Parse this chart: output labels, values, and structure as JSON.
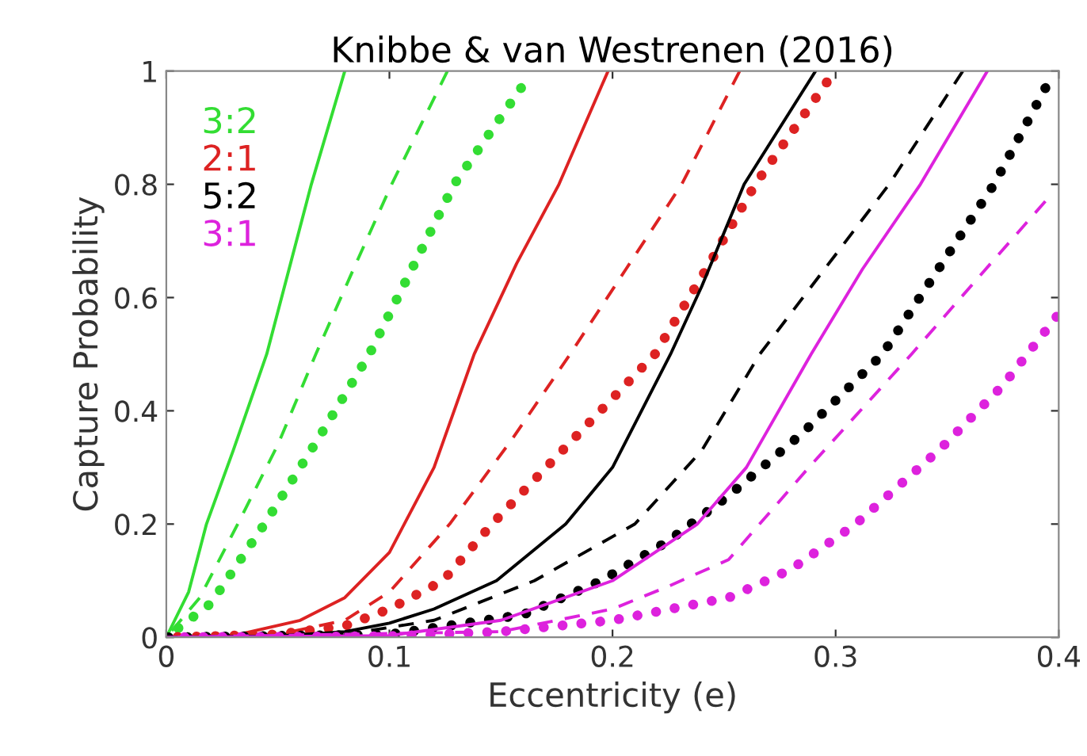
{
  "chart_data": {
    "type": "line",
    "title": "Knibbe & van Westrenen (2016)",
    "xlabel": "Eccentricity (e)",
    "ylabel": "Capture Probability",
    "xlim": [
      0,
      0.4
    ],
    "ylim": [
      0,
      1
    ],
    "xticks": [
      0,
      0.1,
      0.2,
      0.3,
      0.4
    ],
    "yticks": [
      0,
      0.2,
      0.4,
      0.6,
      0.8,
      1
    ],
    "grid": false,
    "legend": "top left",
    "series": [
      {
        "name": "3:2",
        "color": "#33dd33",
        "line_style": "solid",
        "x": [
          0,
          0.01,
          0.018,
          0.03,
          0.045,
          0.065,
          0.08
        ],
        "values": [
          0,
          0.08,
          0.2,
          0.33,
          0.5,
          0.8,
          1.0
        ]
      },
      {
        "color": "#33dd33",
        "line_style": "dashed",
        "x": [
          0,
          0.015,
          0.032,
          0.05,
          0.067,
          0.085,
          0.101,
          0.126
        ],
        "values": [
          0,
          0.07,
          0.2,
          0.34,
          0.5,
          0.66,
          0.8,
          1.0
        ]
      },
      {
        "color": "#33dd33",
        "line_style": "dotted",
        "x": [
          0,
          0.02,
          0.044,
          0.068,
          0.091,
          0.11,
          0.129,
          0.159
        ],
        "values": [
          0,
          0.06,
          0.2,
          0.35,
          0.5,
          0.65,
          0.8,
          0.97
        ]
      },
      {
        "name": "2:1",
        "color": "#dd2222",
        "line_style": "solid",
        "x": [
          0,
          0.03,
          0.06,
          0.08,
          0.1,
          0.12,
          0.138,
          0.157,
          0.176,
          0.198
        ],
        "values": [
          0,
          0.003,
          0.03,
          0.07,
          0.15,
          0.3,
          0.5,
          0.66,
          0.8,
          1.0
        ]
      },
      {
        "color": "#dd2222",
        "line_style": "dashed",
        "x": [
          0,
          0.05,
          0.08,
          0.1,
          0.127,
          0.155,
          0.181,
          0.206,
          0.231,
          0.257
        ],
        "values": [
          0,
          0.005,
          0.03,
          0.08,
          0.2,
          0.35,
          0.5,
          0.65,
          0.8,
          1.0
        ]
      },
      {
        "color": "#dd2222",
        "line_style": "dotted",
        "x": [
          0,
          0.05,
          0.08,
          0.1,
          0.124,
          0.146,
          0.18,
          0.219,
          0.242,
          0.264,
          0.296
        ],
        "values": [
          0,
          0.005,
          0.02,
          0.05,
          0.1,
          0.2,
          0.34,
          0.5,
          0.65,
          0.8,
          0.98
        ]
      },
      {
        "name": "5:2",
        "color": "#000000",
        "line_style": "solid",
        "x": [
          0,
          0.05,
          0.08,
          0.1,
          0.12,
          0.148,
          0.179,
          0.2,
          0.226,
          0.24,
          0.259,
          0.291
        ],
        "values": [
          0,
          0.002,
          0.01,
          0.025,
          0.05,
          0.1,
          0.2,
          0.3,
          0.5,
          0.62,
          0.8,
          1.0
        ]
      },
      {
        "color": "#000000",
        "line_style": "dashed",
        "x": [
          0,
          0.08,
          0.12,
          0.165,
          0.21,
          0.24,
          0.266,
          0.295,
          0.324,
          0.357
        ],
        "values": [
          0,
          0.005,
          0.03,
          0.1,
          0.2,
          0.33,
          0.5,
          0.65,
          0.8,
          1.0
        ]
      },
      {
        "color": "#000000",
        "line_style": "dotted",
        "x": [
          0,
          0.1,
          0.16,
          0.195,
          0.225,
          0.252,
          0.285,
          0.321,
          0.346,
          0.371,
          0.394
        ],
        "values": [
          0,
          0.005,
          0.04,
          0.1,
          0.17,
          0.25,
          0.36,
          0.5,
          0.65,
          0.8,
          0.97
        ]
      },
      {
        "name": "3:1",
        "color": "#dd22dd",
        "line_style": "solid",
        "x": [
          0,
          0.1,
          0.15,
          0.2,
          0.238,
          0.26,
          0.289,
          0.312,
          0.338,
          0.368
        ],
        "values": [
          0,
          0.003,
          0.03,
          0.1,
          0.2,
          0.3,
          0.5,
          0.65,
          0.8,
          1.0
        ]
      },
      {
        "color": "#dd22dd",
        "line_style": "dashed",
        "x": [
          0,
          0.15,
          0.2,
          0.225,
          0.252,
          0.288,
          0.334,
          0.365,
          0.394
        ],
        "values": [
          0,
          0.01,
          0.05,
          0.09,
          0.137,
          0.3,
          0.5,
          0.64,
          0.77
        ]
      },
      {
        "color": "#dd22dd",
        "line_style": "dotted",
        "x": [
          0,
          0.1,
          0.15,
          0.2,
          0.252,
          0.28,
          0.309,
          0.347,
          0.375,
          0.399
        ],
        "values": [
          0,
          0.002,
          0.01,
          0.03,
          0.07,
          0.12,
          0.2,
          0.333,
          0.445,
          0.566
        ]
      }
    ]
  }
}
